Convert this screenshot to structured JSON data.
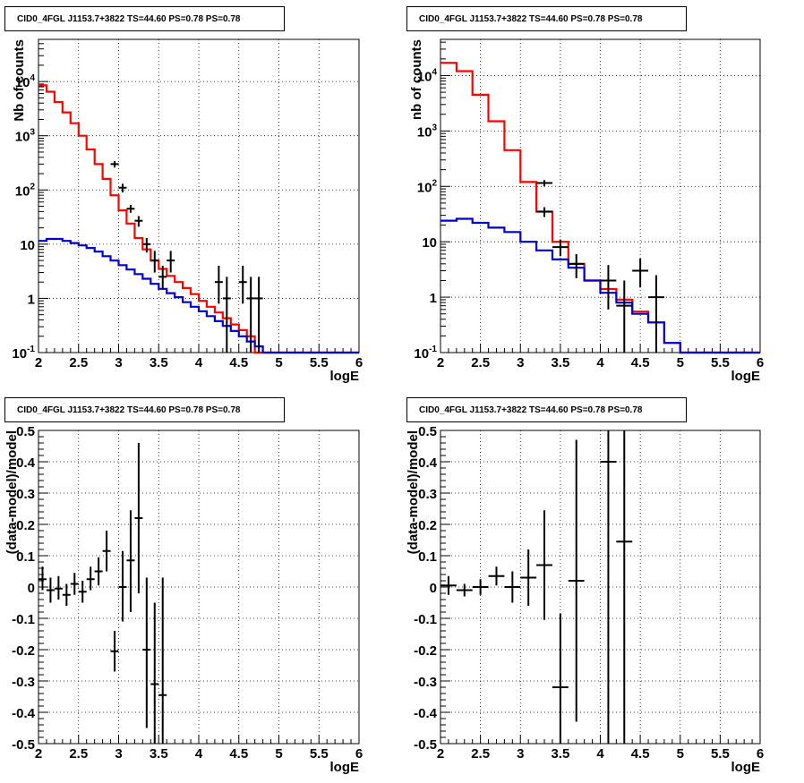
{
  "chart_data": [
    {
      "type": "line",
      "title": "CID0_4FGL J1153.7+3822 TS=44.60 PS=0.78 PS=0.78",
      "xlabel": "logE",
      "ylabel": "Nb of counts",
      "xlim": [
        2,
        6
      ],
      "ylim": [
        0.1,
        60000
      ],
      "yscale": "log",
      "grid": true,
      "x_ticks": [
        "2",
        "2.5",
        "3",
        "3.5",
        "4",
        "4.5",
        "5",
        "5.5",
        "6"
      ],
      "y_ticks": [
        {
          "value": 0.1,
          "base": "10",
          "exp": "-1"
        },
        {
          "value": 1,
          "label": "1"
        },
        {
          "value": 10,
          "label": "10"
        },
        {
          "value": 100,
          "base": "10",
          "exp": "2"
        },
        {
          "value": 1000,
          "base": "10",
          "exp": "3"
        },
        {
          "value": 10000,
          "base": "10",
          "exp": "4"
        }
      ],
      "series": [
        {
          "color": "#ff0000",
          "step_edges": [
            2.0,
            2.1,
            2.2,
            2.3,
            2.4,
            2.5,
            2.6,
            2.7,
            2.8,
            2.9,
            3.0,
            3.1,
            3.2,
            3.3,
            3.4,
            3.5,
            3.6,
            3.7,
            3.8,
            3.9,
            4.0,
            4.1,
            4.2,
            4.3,
            4.4,
            4.5,
            4.6,
            4.7,
            4.8,
            4.9,
            5.0,
            5.1,
            5.2,
            5.3,
            5.4,
            5.5,
            5.6,
            5.7,
            5.8,
            5.9,
            6.0
          ],
          "values": [
            8500,
            6500,
            4200,
            2700,
            1700,
            1000,
            560,
            300,
            160,
            80,
            42,
            24,
            13,
            8,
            5,
            3.5,
            2.6,
            2.0,
            1.55,
            1.2,
            0.9,
            0.7,
            0.55,
            0.43,
            0.33,
            0.26,
            0.2,
            0.1,
            0.1,
            0.1,
            0.1,
            0.1,
            0.1,
            0.1,
            0.1,
            0.1,
            0.1,
            0.1,
            0.1,
            0.1
          ]
        },
        {
          "color": "#0000cc",
          "step_edges": [
            2.0,
            2.1,
            2.2,
            2.3,
            2.4,
            2.5,
            2.6,
            2.7,
            2.8,
            2.9,
            3.0,
            3.1,
            3.2,
            3.3,
            3.4,
            3.5,
            3.6,
            3.7,
            3.8,
            3.9,
            4.0,
            4.1,
            4.2,
            4.3,
            4.4,
            4.5,
            4.6,
            4.7,
            4.8,
            4.9,
            5.0,
            5.1,
            5.2,
            5.3,
            5.4,
            5.5,
            5.6,
            5.7,
            5.8,
            5.9,
            6.0
          ],
          "values": [
            11.5,
            12.5,
            12.5,
            11.5,
            10.5,
            9.5,
            8.5,
            7.3,
            6.0,
            5.0,
            4.1,
            3.4,
            2.8,
            2.3,
            1.85,
            1.5,
            1.25,
            1.05,
            0.85,
            0.7,
            0.58,
            0.47,
            0.38,
            0.31,
            0.25,
            0.2,
            0.16,
            0.13,
            0.1,
            0.1,
            0.1,
            0.1,
            0.1,
            0.1,
            0.1,
            0.1,
            0.1,
            0.1,
            0.1,
            0.1
          ]
        }
      ],
      "points": [
        {
          "x": 2.95,
          "xerr": 0.05,
          "y": 300,
          "ylo": 260,
          "yhi": 340
        },
        {
          "x": 3.05,
          "xerr": 0.05,
          "y": 110,
          "ylo": 90,
          "yhi": 130
        },
        {
          "x": 3.15,
          "xerr": 0.05,
          "y": 45,
          "ylo": 38,
          "yhi": 53
        },
        {
          "x": 3.25,
          "xerr": 0.05,
          "y": 27,
          "ylo": 21,
          "yhi": 33
        },
        {
          "x": 3.35,
          "xerr": 0.05,
          "y": 10,
          "ylo": 7,
          "yhi": 13
        },
        {
          "x": 3.45,
          "xerr": 0.05,
          "y": 5,
          "ylo": 3,
          "yhi": 7.5
        },
        {
          "x": 3.55,
          "xerr": 0.05,
          "y": 2.5,
          "ylo": 1.5,
          "yhi": 4
        },
        {
          "x": 3.65,
          "xerr": 0.05,
          "y": 5,
          "ylo": 3,
          "yhi": 7.5
        },
        {
          "x": 4.25,
          "xerr": 0.05,
          "y": 2,
          "ylo": 0.8,
          "yhi": 4
        },
        {
          "x": 4.35,
          "xerr": 0.05,
          "y": 1,
          "ylo": 0.1,
          "yhi": 2.5
        },
        {
          "x": 4.55,
          "xerr": 0.05,
          "y": 2,
          "ylo": 0.8,
          "yhi": 4
        },
        {
          "x": 4.65,
          "xerr": 0.05,
          "y": 1,
          "ylo": 0.1,
          "yhi": 2.5
        },
        {
          "x": 4.75,
          "xerr": 0.05,
          "y": 1,
          "ylo": 0.1,
          "yhi": 2.5
        }
      ]
    },
    {
      "type": "line",
      "title": "CID0_4FGL J1153.7+3822 TS=44.60 PS=0.78 PS=0.78",
      "xlabel": "logE",
      "ylabel": "nb of counts",
      "xlim": [
        2,
        6
      ],
      "ylim": [
        0.1,
        45000
      ],
      "yscale": "log",
      "grid": true,
      "x_ticks": [
        "2",
        "2.5",
        "3",
        "3.5",
        "4",
        "4.5",
        "5",
        "5.5",
        "6"
      ],
      "y_ticks": [
        {
          "value": 0.1,
          "base": "10",
          "exp": "-1"
        },
        {
          "value": 1,
          "label": "1"
        },
        {
          "value": 10,
          "label": "10"
        },
        {
          "value": 100,
          "base": "10",
          "exp": "2"
        },
        {
          "value": 1000,
          "base": "10",
          "exp": "3"
        },
        {
          "value": 10000,
          "base": "10",
          "exp": "4"
        }
      ],
      "series": [
        {
          "color": "#ff0000",
          "step_edges": [
            2.0,
            2.2,
            2.4,
            2.6,
            2.8,
            3.0,
            3.2,
            3.4,
            3.6,
            3.8,
            4.0,
            4.2,
            4.4,
            4.6,
            4.8,
            5.0,
            5.2,
            5.4,
            5.6,
            5.8,
            6.0
          ],
          "values": [
            17000,
            12000,
            4500,
            1500,
            450,
            120,
            35,
            10,
            4,
            2,
            1.4,
            0.9,
            0.55,
            0.35,
            0.15,
            0.1,
            0.1,
            0.1,
            0.1,
            0.1
          ]
        },
        {
          "color": "#0000cc",
          "step_edges": [
            2.0,
            2.2,
            2.4,
            2.6,
            2.8,
            3.0,
            3.2,
            3.4,
            3.6,
            3.8,
            4.0,
            4.2,
            4.4,
            4.6,
            4.8,
            5.0,
            5.2,
            5.4,
            5.6,
            5.8,
            6.0
          ],
          "values": [
            24,
            26,
            22,
            18,
            15,
            10,
            7,
            4.8,
            3.4,
            2,
            1.2,
            0.8,
            0.5,
            0.35,
            0.15,
            0.1,
            0.1,
            0.1,
            0.1,
            0.1
          ]
        }
      ],
      "points": [
        {
          "x": 3.3,
          "xerr": 0.1,
          "y": 115,
          "ylo": 100,
          "yhi": 130
        },
        {
          "x": 3.3,
          "xerr": 0.1,
          "y": 35,
          "ylo": 28,
          "yhi": 42
        },
        {
          "x": 3.5,
          "xerr": 0.1,
          "y": 8,
          "ylo": 5.5,
          "yhi": 11
        },
        {
          "x": 3.7,
          "xerr": 0.1,
          "y": 4,
          "ylo": 2.2,
          "yhi": 6
        },
        {
          "x": 4.1,
          "xerr": 0.1,
          "y": 2,
          "ylo": 0.6,
          "yhi": 3.8
        },
        {
          "x": 4.3,
          "xerr": 0.1,
          "y": 0.7,
          "ylo": 0.1,
          "yhi": 2
        },
        {
          "x": 4.5,
          "xerr": 0.1,
          "y": 3,
          "ylo": 1.5,
          "yhi": 5
        },
        {
          "x": 4.7,
          "xerr": 0.1,
          "y": 1,
          "ylo": 0.1,
          "yhi": 2.5
        }
      ]
    },
    {
      "type": "scatter",
      "title": "CID0_4FGL J1153.7+3822 TS=44.60 PS=0.78 PS=0.78",
      "xlabel": "logE",
      "ylabel": "(data-model)/model",
      "xlim": [
        2,
        6
      ],
      "ylim": [
        -0.5,
        0.5
      ],
      "grid": true,
      "x_ticks": [
        "2",
        "2.5",
        "3",
        "3.5",
        "4",
        "4.5",
        "5",
        "5.5",
        "6"
      ],
      "y_ticks": [
        "-0.5",
        "-0.4",
        "-0.3",
        "-0.2",
        "-0.1",
        "0",
        "0.1",
        "0.2",
        "0.3",
        "0.4",
        "0.5"
      ],
      "points": [
        {
          "x": 2.05,
          "xerr": 0.05,
          "y": 0.025,
          "ylo": -0.01,
          "yhi": 0.065
        },
        {
          "x": 2.15,
          "xerr": 0.05,
          "y": -0.01,
          "ylo": -0.05,
          "yhi": 0.03
        },
        {
          "x": 2.25,
          "xerr": 0.05,
          "y": -0.005,
          "ylo": -0.04,
          "yhi": 0.035
        },
        {
          "x": 2.35,
          "xerr": 0.05,
          "y": -0.025,
          "ylo": -0.06,
          "yhi": 0.01
        },
        {
          "x": 2.45,
          "xerr": 0.05,
          "y": 0.01,
          "ylo": -0.025,
          "yhi": 0.045
        },
        {
          "x": 2.55,
          "xerr": 0.05,
          "y": -0.015,
          "ylo": -0.05,
          "yhi": 0.02
        },
        {
          "x": 2.65,
          "xerr": 0.05,
          "y": 0.025,
          "ylo": -0.01,
          "yhi": 0.065
        },
        {
          "x": 2.75,
          "xerr": 0.05,
          "y": 0.05,
          "ylo": 0.005,
          "yhi": 0.095
        },
        {
          "x": 2.85,
          "xerr": 0.05,
          "y": 0.115,
          "ylo": 0.05,
          "yhi": 0.18
        },
        {
          "x": 2.95,
          "xerr": 0.05,
          "y": -0.205,
          "ylo": -0.27,
          "yhi": -0.14
        },
        {
          "x": 3.05,
          "xerr": 0.05,
          "y": 0.0,
          "ylo": -0.11,
          "yhi": 0.115
        },
        {
          "x": 3.15,
          "xerr": 0.05,
          "y": 0.085,
          "ylo": -0.08,
          "yhi": 0.245
        },
        {
          "x": 3.25,
          "xerr": 0.05,
          "y": 0.22,
          "ylo": -0.02,
          "yhi": 0.46
        },
        {
          "x": 3.35,
          "xerr": 0.05,
          "y": -0.2,
          "ylo": -0.45,
          "yhi": 0.03
        },
        {
          "x": 3.45,
          "xerr": 0.05,
          "y": -0.31,
          "ylo": -0.5,
          "yhi": -0.05
        },
        {
          "x": 3.55,
          "xerr": 0.05,
          "y": -0.345,
          "ylo": -0.5,
          "yhi": 0.03
        }
      ]
    },
    {
      "type": "scatter",
      "title": "CID0_4FGL J1153.7+3822 TS=44.60 PS=0.78 PS=0.78",
      "xlabel": "logE",
      "ylabel": "(data-model)/model",
      "xlim": [
        2,
        6
      ],
      "ylim": [
        -0.5,
        0.5
      ],
      "grid": true,
      "x_ticks": [
        "2",
        "2.5",
        "3",
        "3.5",
        "4",
        "4.5",
        "5",
        "5.5",
        "6"
      ],
      "y_ticks": [
        "-0.5",
        "-0.4",
        "-0.3",
        "-0.2",
        "-0.1",
        "0",
        "0.1",
        "0.2",
        "0.3",
        "0.4",
        "0.5"
      ],
      "points": [
        {
          "x": 2.1,
          "xerr": 0.1,
          "y": 0.005,
          "ylo": -0.025,
          "yhi": 0.035
        },
        {
          "x": 2.3,
          "xerr": 0.1,
          "y": -0.01,
          "ylo": -0.03,
          "yhi": 0.01
        },
        {
          "x": 2.5,
          "xerr": 0.1,
          "y": 0.0,
          "ylo": -0.025,
          "yhi": 0.025
        },
        {
          "x": 2.7,
          "xerr": 0.1,
          "y": 0.035,
          "ylo": 0.005,
          "yhi": 0.065
        },
        {
          "x": 2.9,
          "xerr": 0.1,
          "y": 0.0,
          "ylo": -0.05,
          "yhi": 0.05
        },
        {
          "x": 3.1,
          "xerr": 0.1,
          "y": 0.03,
          "ylo": -0.06,
          "yhi": 0.12
        },
        {
          "x": 3.3,
          "xerr": 0.1,
          "y": 0.07,
          "ylo": -0.105,
          "yhi": 0.245
        },
        {
          "x": 3.5,
          "xerr": 0.1,
          "y": -0.32,
          "ylo": -0.5,
          "yhi": -0.085
        },
        {
          "x": 3.7,
          "xerr": 0.1,
          "y": 0.02,
          "ylo": -0.43,
          "yhi": 0.47
        },
        {
          "x": 4.1,
          "xerr": 0.1,
          "y": 0.4,
          "ylo": -0.5,
          "yhi": 0.5
        },
        {
          "x": 4.3,
          "xerr": 0.1,
          "y": 0.145,
          "ylo": -0.5,
          "yhi": 0.5
        }
      ]
    }
  ]
}
